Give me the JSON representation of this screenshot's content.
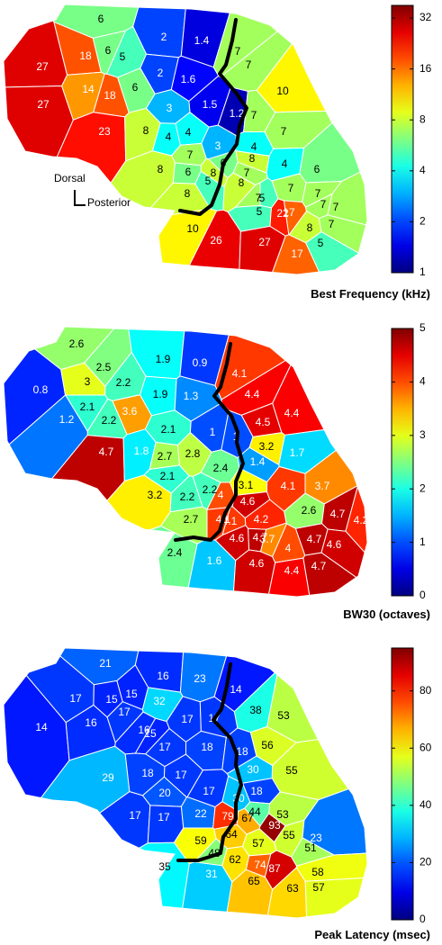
{
  "orientation": {
    "dorsal": "Dorsal",
    "posterior": "Posterior"
  },
  "chart_data": [
    {
      "type": "heatmap",
      "title": "Best Frequency (kHz)",
      "colorbar": {
        "scale": "log2",
        "min": 1,
        "max": 38,
        "ticks": [
          1,
          2,
          4,
          8,
          16,
          32
        ]
      },
      "values": [
        6,
        2,
        1.4,
        7,
        27,
        18,
        6,
        5,
        2,
        1.6,
        7,
        27,
        14,
        18,
        6,
        1.5,
        1.2,
        10,
        23,
        3,
        7,
        8,
        4,
        4,
        7,
        3,
        4,
        7,
        6,
        8,
        8,
        8,
        7,
        4,
        6,
        5,
        8,
        7,
        7,
        6,
        7,
        17,
        5,
        7,
        7,
        8,
        5,
        22,
        8,
        7,
        10,
        26,
        27,
        17,
        5
      ]
    },
    {
      "type": "heatmap",
      "title": "BW30 (octaves)",
      "colorbar": {
        "scale": "linear",
        "min": 0,
        "max": 5,
        "ticks": [
          0,
          1,
          2,
          3,
          4,
          5
        ]
      },
      "values": [
        2.6,
        1.9,
        0.9,
        4.1,
        0.8,
        3,
        2.5,
        2.2,
        1.9,
        1.3,
        4.4,
        2.1,
        2.2,
        3.6,
        4.5,
        4.4,
        1.2,
        2.1,
        1,
        1,
        3.2,
        4.7,
        1.8,
        2.7,
        2.8,
        1.7,
        2.1,
        2.4,
        1.4,
        3.1,
        4.1,
        3.7,
        3.2,
        2.2,
        2.2,
        4,
        4.6,
        2.6,
        4.7,
        2.7,
        4.1,
        4.2,
        4.1,
        4.7,
        4.2,
        4.6,
        3.7,
        4.7,
        4,
        4.6,
        2.4,
        1.6,
        4.6,
        4.4,
        4.7
      ]
    },
    {
      "type": "heatmap",
      "title": "Peak Latency (msec)",
      "colorbar": {
        "scale": "linear",
        "min": 0,
        "max": 95,
        "ticks": [
          0,
          20,
          40,
          60,
          80
        ]
      },
      "values": [
        21,
        16,
        23,
        14,
        17,
        15,
        15,
        32,
        38,
        16,
        17,
        17,
        53,
        14,
        16,
        17,
        15,
        56,
        17,
        18,
        18,
        30,
        55,
        29,
        18,
        17,
        20,
        17,
        30,
        18,
        17,
        44,
        53,
        17,
        22,
        79,
        67,
        93,
        55,
        23,
        59,
        64,
        57,
        51,
        48,
        62,
        74,
        87,
        58,
        35,
        31,
        65,
        63,
        57
      ]
    }
  ]
}
